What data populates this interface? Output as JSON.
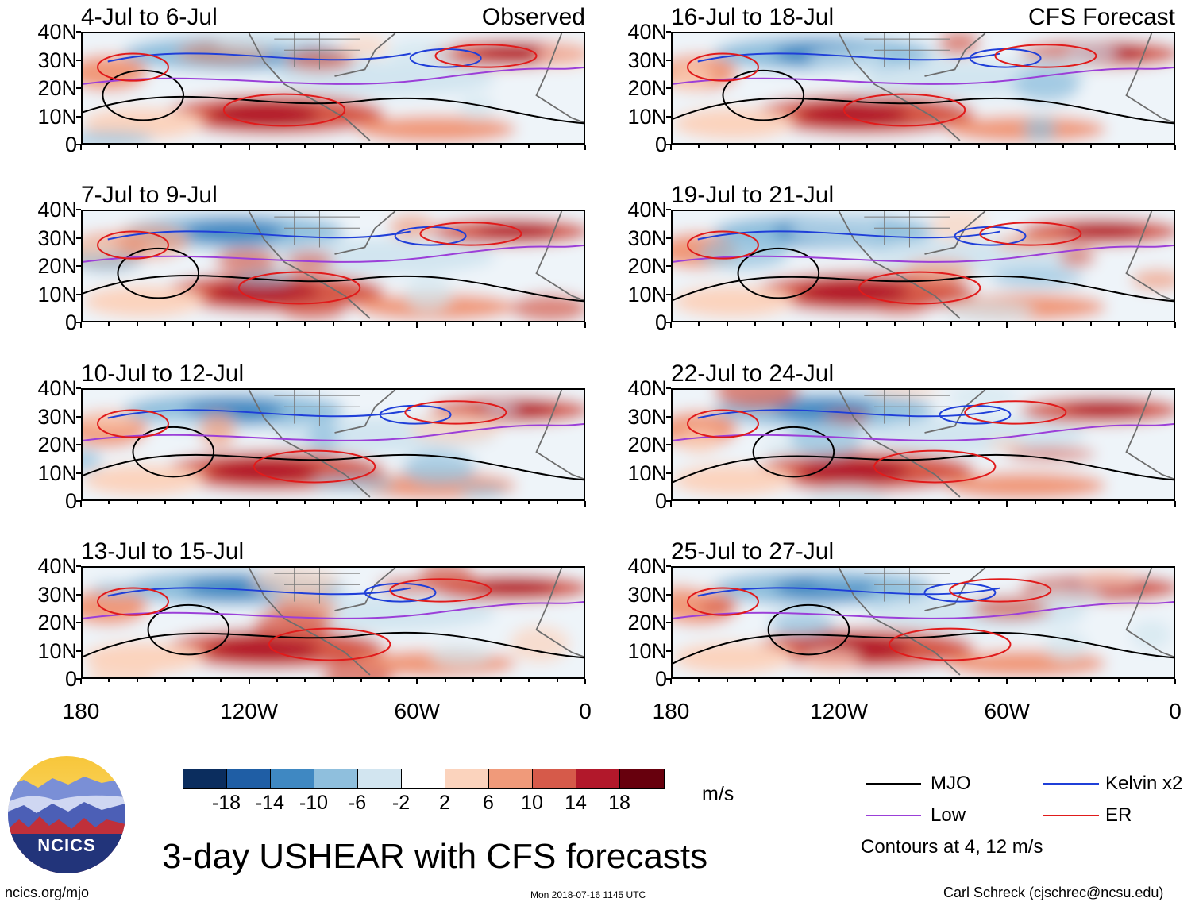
{
  "figure": {
    "title": "3-day USHEAR with CFS forecasts",
    "observed_label": "Observed",
    "forecast_label": "CFS Forecast",
    "units": "m/s",
    "contour_note": "Contours at 4, 12 m/s",
    "website": "ncics.org/mjo",
    "timestamp": "Mon 2018-07-16 1145 UTC",
    "author": "Carl Schreck (cjschrec@ncsu.edu)",
    "logo_text": "NCICS"
  },
  "panels": [
    {
      "title": "4-Jul to 6-Jul",
      "column": "left",
      "row": 0,
      "tag": "Observed"
    },
    {
      "title": "7-Jul to 9-Jul",
      "column": "left",
      "row": 1,
      "tag": ""
    },
    {
      "title": "10-Jul to 12-Jul",
      "column": "left",
      "row": 2,
      "tag": ""
    },
    {
      "title": "13-Jul to 15-Jul",
      "column": "left",
      "row": 3,
      "tag": ""
    },
    {
      "title": "16-Jul to 18-Jul",
      "column": "right",
      "row": 0,
      "tag": "CFS Forecast"
    },
    {
      "title": "19-Jul to 21-Jul",
      "column": "right",
      "row": 1,
      "tag": ""
    },
    {
      "title": "22-Jul to 24-Jul",
      "column": "right",
      "row": 2,
      "tag": ""
    },
    {
      "title": "25-Jul to 27-Jul",
      "column": "right",
      "row": 3,
      "tag": ""
    }
  ],
  "axes": {
    "lat_labels": [
      "40N",
      "30N",
      "20N",
      "10N",
      "0"
    ],
    "lon_labels": [
      "180",
      "120W",
      "60W",
      "0"
    ]
  },
  "colorbar": {
    "labels": [
      "-18",
      "-14",
      "-10",
      "-6",
      "-2",
      "2",
      "6",
      "10",
      "14",
      "18"
    ],
    "colors": [
      "#0b2d5e",
      "#1f5ea5",
      "#3f88c2",
      "#8fbfdd",
      "#d2e5f0",
      "#ffffff",
      "#fbd3bd",
      "#f09a7a",
      "#d65a4a",
      "#b2182b",
      "#67000d"
    ]
  },
  "legend": [
    {
      "label": "MJO",
      "color": "#000000"
    },
    {
      "label": "Kelvin x2",
      "color": "#1f3fd8"
    },
    {
      "label": "Low",
      "color": "#9b3fd8"
    },
    {
      "label": "ER",
      "color": "#e01b1b"
    }
  ]
}
